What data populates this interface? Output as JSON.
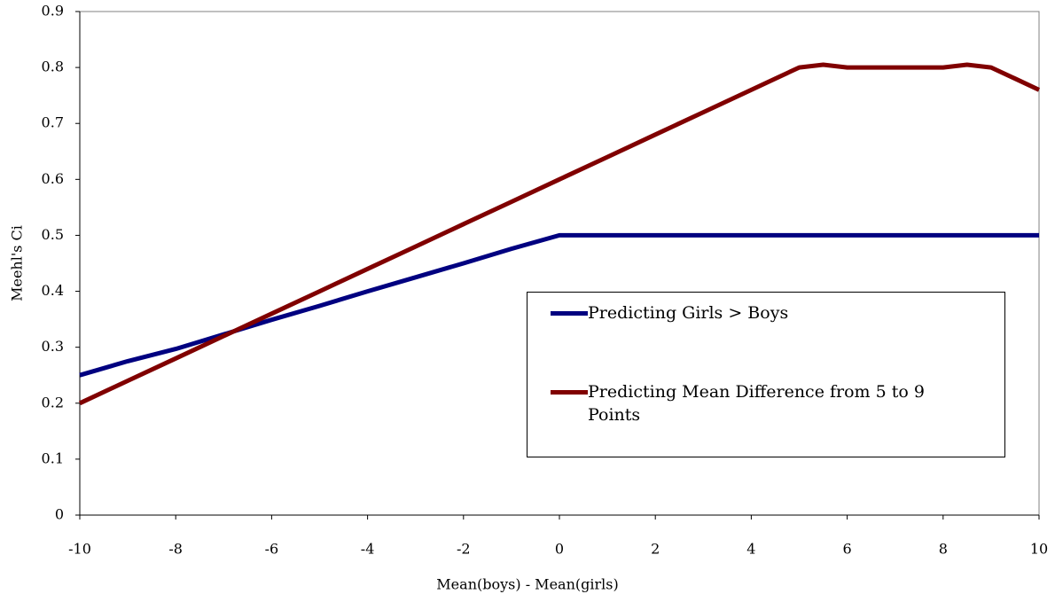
{
  "chart_data": {
    "type": "line",
    "xlabel": "Mean(boys) - Mean(girls)",
    "ylabel": "Meehl's Ci",
    "xlim": [
      -10,
      10
    ],
    "xticks": [
      -10,
      -8,
      -6,
      -4,
      -2,
      0,
      2,
      4,
      6,
      8,
      10
    ],
    "ylim": [
      0,
      0.9
    ],
    "yticks": [
      0,
      0.1,
      0.2,
      0.3,
      0.4,
      0.5,
      0.6,
      0.7,
      0.8,
      0.9
    ],
    "series": [
      {
        "name": "Predicting Girls > Boys",
        "color": "#000080",
        "x": [
          -10,
          -9,
          -8,
          -7,
          -6,
          -5,
          -4,
          -3,
          -2,
          -1,
          0,
          10
        ],
        "values": [
          0.25,
          0.275,
          0.297,
          0.323,
          0.349,
          0.374,
          0.4,
          0.425,
          0.45,
          0.476,
          0.5,
          0.5
        ]
      },
      {
        "name": "Predicting Mean Difference from 5 to 9 Points",
        "color": "#800000",
        "x": [
          -10,
          -9,
          -8,
          -7,
          -6,
          -5,
          -4,
          -3,
          -2,
          -1,
          0,
          1,
          2,
          3,
          4,
          4.5,
          5,
          5.5,
          6,
          7,
          8,
          8.5,
          9,
          9.5,
          10
        ],
        "values": [
          0.2,
          0.24,
          0.28,
          0.32,
          0.36,
          0.4,
          0.44,
          0.48,
          0.52,
          0.56,
          0.6,
          0.64,
          0.68,
          0.72,
          0.76,
          0.78,
          0.8,
          0.805,
          0.8,
          0.8,
          0.8,
          0.805,
          0.8,
          0.78,
          0.76
        ]
      }
    ]
  }
}
